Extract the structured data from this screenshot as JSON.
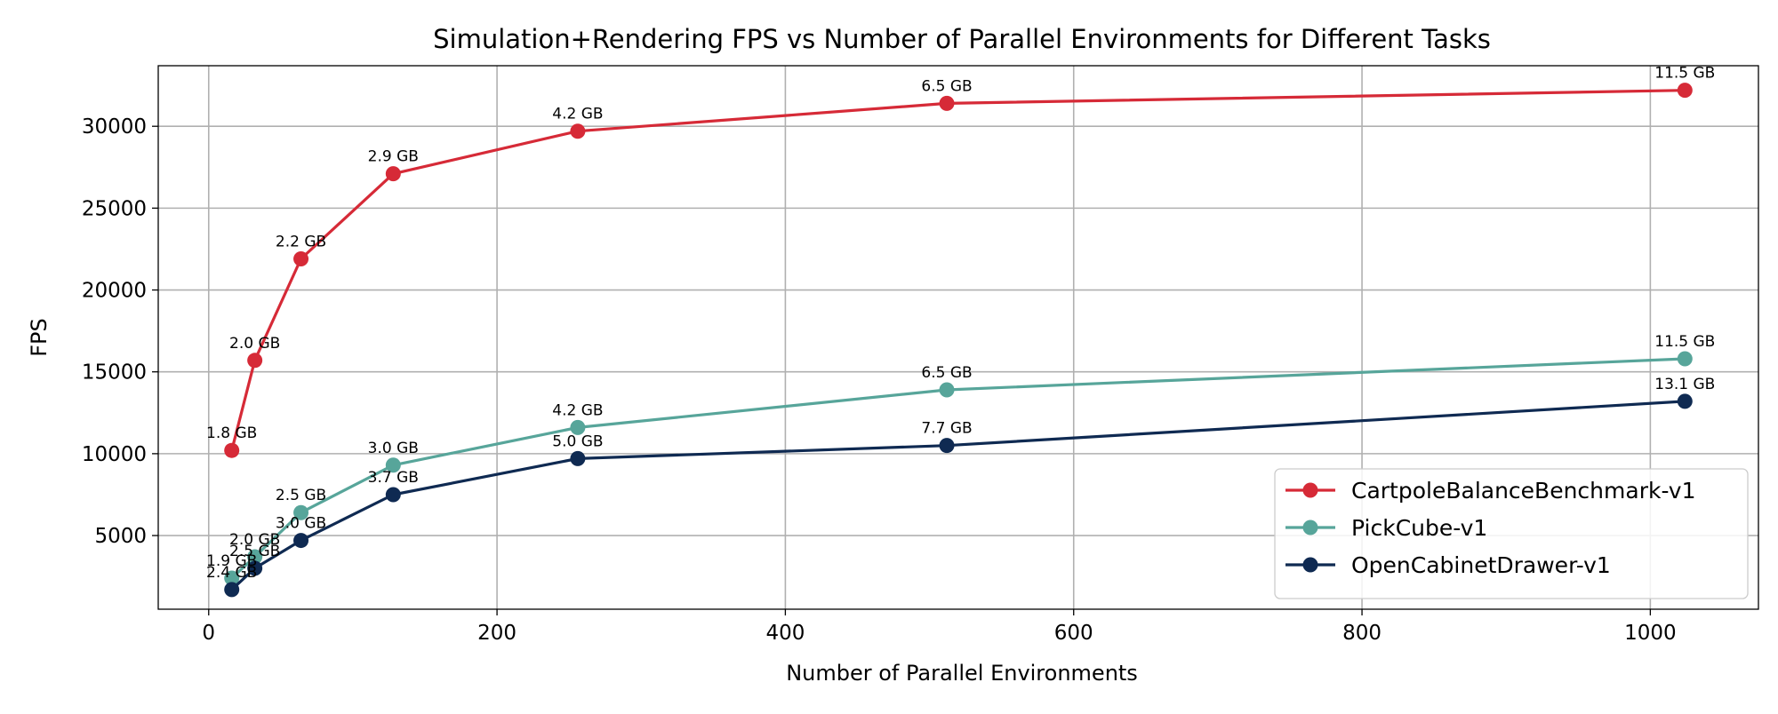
{
  "chart_data": {
    "type": "line",
    "title": "Simulation+Rendering FPS vs Number of Parallel Environments for Different Tasks",
    "xlabel": "Number of Parallel Environments",
    "ylabel": "FPS",
    "xlim": [
      -35,
      1075
    ],
    "ylim": [
      500,
      33700
    ],
    "xticks": [
      0,
      200,
      400,
      600,
      800,
      1000
    ],
    "yticks": [
      5000,
      10000,
      15000,
      20000,
      25000,
      30000
    ],
    "grid": true,
    "legend_position": "lower-right",
    "series": [
      {
        "name": "CartpoleBalanceBenchmark-v1",
        "color": "#d62a37",
        "x": [
          16,
          32,
          64,
          128,
          256,
          512,
          1024
        ],
        "y": [
          10200,
          15700,
          21900,
          27100,
          29700,
          31400,
          32200
        ],
        "labels": [
          "1.8 GB",
          "2.0 GB",
          "2.2 GB",
          "2.9 GB",
          "4.2 GB",
          "6.5 GB",
          "11.5 GB"
        ]
      },
      {
        "name": "PickCube-v1",
        "color": "#57a59a",
        "x": [
          16,
          32,
          64,
          128,
          256,
          512,
          1024
        ],
        "y": [
          2400,
          3700,
          6400,
          9300,
          11600,
          13900,
          15800
        ],
        "labels": [
          "1.9 GB",
          "2.0 GB",
          "2.5 GB",
          "3.0 GB",
          "4.2 GB",
          "6.5 GB",
          "11.5 GB"
        ]
      },
      {
        "name": "OpenCabinetDrawer-v1",
        "color": "#0f2a52",
        "x": [
          16,
          32,
          64,
          128,
          256,
          512,
          1024
        ],
        "y": [
          1700,
          3000,
          4700,
          7500,
          9700,
          10500,
          13200
        ],
        "labels": [
          "2.4 GB",
          "2.5 GB",
          "3.0 GB",
          "3.7 GB",
          "5.0 GB",
          "7.7 GB",
          "13.1 GB"
        ]
      }
    ]
  }
}
